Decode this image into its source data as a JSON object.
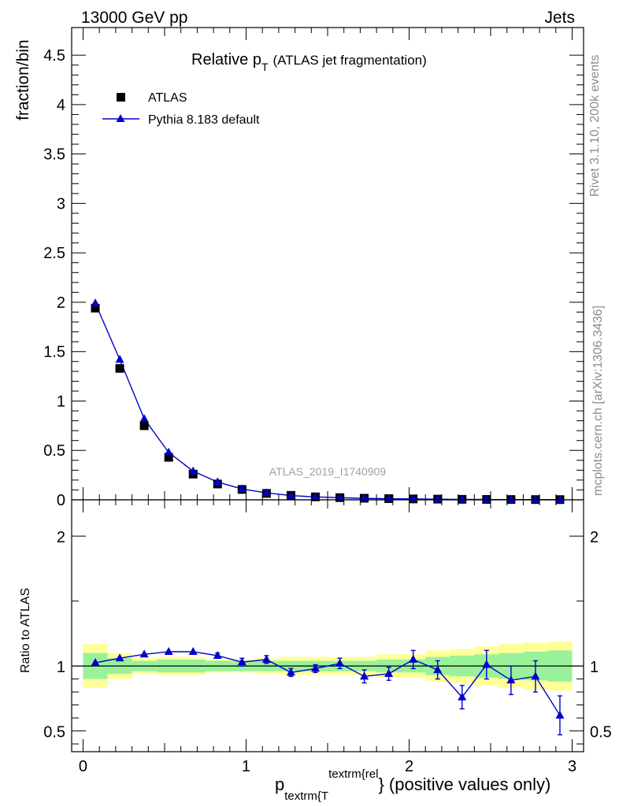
{
  "header": {
    "left": "13000 GeV pp",
    "right": "Jets"
  },
  "side": {
    "top": "Rivet 3.1.10,  200k events",
    "bottom": "mcplots.cern.ch [arXiv:1306.3436]"
  },
  "watermark": "ATLAS_2019_I1740909",
  "colors": {
    "mc": "#0000cc",
    "data": "#000000",
    "band_inner": "#99f299",
    "band_outer": "#ffff99"
  },
  "chart_data": [
    {
      "type": "scatter",
      "panel": "main",
      "title_main": "Relative p",
      "title_sub": "T",
      "title_rest": "(ATLAS jet fragmentation)",
      "ylabel": "fraction/bin",
      "xlim": [
        -0.07,
        3.07
      ],
      "ylim": [
        0,
        4.78
      ],
      "yticks": [
        0,
        0.5,
        1,
        1.5,
        2,
        2.5,
        3,
        3.5,
        4,
        4.5
      ],
      "ytick_labels": [
        "0",
        "0.5",
        "1",
        "1.5",
        "2",
        "2.5",
        "3",
        "3.5",
        "4",
        "4.5"
      ],
      "x": [
        0.075,
        0.225,
        0.375,
        0.525,
        0.675,
        0.825,
        0.975,
        1.125,
        1.275,
        1.425,
        1.575,
        1.725,
        1.875,
        2.025,
        2.175,
        2.325,
        2.475,
        2.625,
        2.775,
        2.925
      ],
      "series": [
        {
          "name": "ATLAS",
          "marker": "square",
          "values": [
            1.94,
            1.33,
            0.75,
            0.43,
            0.26,
            0.16,
            0.105,
            0.065,
            0.045,
            0.03,
            0.022,
            0.016,
            0.012,
            0.009,
            0.007,
            0.005,
            0.004,
            0.003,
            0.0025,
            0.002
          ]
        },
        {
          "name": "Pythia 8.183 default",
          "marker": "triangle",
          "values": [
            1.99,
            1.42,
            0.82,
            0.48,
            0.29,
            0.18,
            0.11,
            0.07,
            0.043,
            0.029,
            0.022,
            0.014,
            0.011,
            0.009,
            0.006,
            0.004,
            0.003,
            0.002,
            0.002,
            0.001
          ]
        }
      ]
    },
    {
      "type": "scatter",
      "panel": "ratio",
      "ylabel": "Ratio to ATLAS",
      "xlabel_main": "p",
      "xlabel_sub": "textrm{T",
      "xlabel_sup": "textrm{rel",
      "xlabel_rest": "} (positive values only)",
      "xlim": [
        -0.07,
        3.07
      ],
      "ylim": [
        0.34,
        2.28
      ],
      "yticks": [
        0.5,
        1,
        2
      ],
      "ytick_labels": [
        "0.5",
        "1",
        "2"
      ],
      "xticks": [
        0,
        1,
        2,
        3
      ],
      "xtick_labels": [
        "0",
        "1",
        "2",
        "3"
      ],
      "x": [
        0.075,
        0.225,
        0.375,
        0.525,
        0.675,
        0.825,
        0.975,
        1.125,
        1.275,
        1.425,
        1.575,
        1.725,
        1.875,
        2.025,
        2.175,
        2.325,
        2.475,
        2.625,
        2.775,
        2.925
      ],
      "values": [
        1.025,
        1.06,
        1.09,
        1.11,
        1.11,
        1.08,
        1.03,
        1.05,
        0.95,
        0.98,
        1.02,
        0.92,
        0.94,
        1.05,
        0.97,
        0.76,
        1.01,
        0.89,
        0.92,
        0.62
      ],
      "errors": [
        0.0,
        0.0,
        0.0,
        0.0,
        0.0,
        0.02,
        0.03,
        0.03,
        0.03,
        0.03,
        0.04,
        0.05,
        0.05,
        0.07,
        0.07,
        0.09,
        0.11,
        0.11,
        0.12,
        0.15
      ],
      "band": {
        "edges": [
          0.0,
          0.15,
          0.3,
          0.45,
          0.75,
          1.05,
          1.2,
          1.5,
          1.8,
          2.1,
          2.25,
          2.4,
          2.55,
          2.7,
          2.85,
          3.0
        ],
        "inner": [
          0.1,
          0.06,
          0.04,
          0.05,
          0.04,
          0.04,
          0.04,
          0.04,
          0.05,
          0.07,
          0.08,
          0.09,
          0.1,
          0.11,
          0.12
        ],
        "outer": [
          0.17,
          0.1,
          0.06,
          0.07,
          0.05,
          0.06,
          0.07,
          0.07,
          0.09,
          0.12,
          0.13,
          0.15,
          0.17,
          0.18,
          0.19
        ]
      }
    }
  ]
}
